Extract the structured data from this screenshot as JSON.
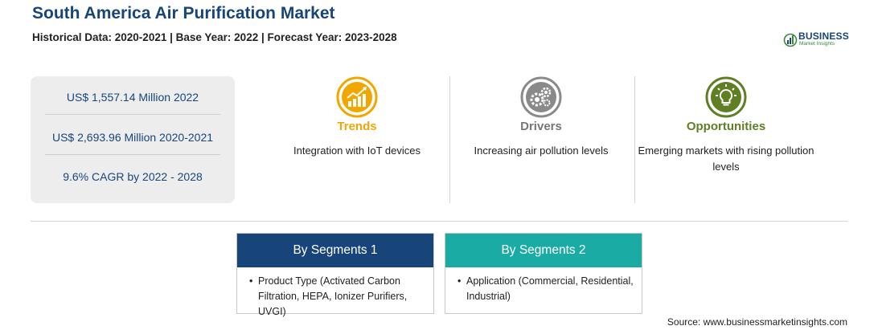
{
  "header": {
    "title": "South America Air Purification Market",
    "subtitle": "Historical Data: 2020-2021 | Base Year: 2022 | Forecast Year: 2023-2028"
  },
  "logo": {
    "brand": "BUSINESS",
    "sub": "Market Insights"
  },
  "stats": [
    "US$ 1,557.14 Million 2022",
    "US$ 2,693.96 Million 2020-2021",
    "9.6% CAGR by 2022 - 2028"
  ],
  "columns": [
    {
      "heading": "Trends",
      "desc": "Integration with IoT devices",
      "icon": "trend-chart-icon",
      "color": "#f2a700"
    },
    {
      "heading": "Drivers",
      "desc": "Increasing air pollution levels",
      "icon": "gears-icon",
      "color": "#777777"
    },
    {
      "heading": "Opportunities",
      "desc": "Emerging markets with rising pollution levels",
      "icon": "lightbulb-icon",
      "color": "#5f7f25"
    }
  ],
  "segments": [
    {
      "title": "By Segments 1",
      "items": [
        "Product Type (Activated Carbon Filtration, HEPA, Ionizer Purifiers, UVGI)"
      ],
      "color": "#17457a"
    },
    {
      "title": "By Segments 2",
      "items": [
        "Application (Commercial, Residential, Industrial)"
      ],
      "color": "#1aaca4"
    }
  ],
  "source": "Source: www.businessmarketinsights.com"
}
